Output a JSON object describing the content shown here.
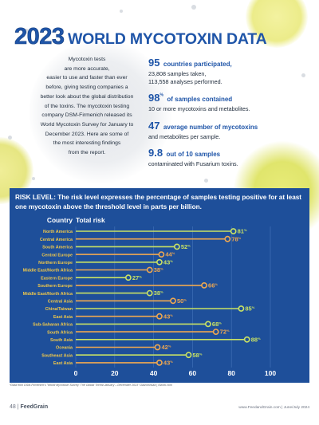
{
  "title": {
    "year": "2023",
    "rest": "WORLD MYCOTOXIN DATA"
  },
  "intro_lines": [
    "Mycotoxin tests",
    "are more accurate,",
    "easier to use and faster than ever",
    "before, giving testing companies a",
    "better look about the global distribution",
    "of the toxins. The mycotoxin testing",
    "company DSM-Firmenich released its",
    "World Mycotoxin Survey for January to",
    "December 2023. Here are some of",
    "the most interesting findings",
    "from the report."
  ],
  "stats": [
    {
      "big": "95",
      "sup": "",
      "lead": "countries participated,",
      "lines": [
        "23,808 samples taken,",
        "113,558 analyses performed."
      ]
    },
    {
      "big": "98",
      "sup": "%",
      "lead": "of samples contained",
      "lines": [
        "10 or more mycotoxins and metabolites."
      ]
    },
    {
      "big": "47",
      "sup": "",
      "lead": "average number of mycotoxins",
      "lines": [
        "and metabolites per sample."
      ]
    },
    {
      "big": "9.8",
      "sup": "",
      "lead": "out of 10 samples",
      "lines": [
        "contaminated with Fusarium toxins."
      ]
    }
  ],
  "risk": {
    "label": "RISK LEVEL:",
    "text": "The risk level expresses the percentage of samples testing positive for at least one mycotoxin above the threshold level in parts per billion."
  },
  "chart_data": {
    "type": "bar",
    "column_headers": [
      "Country",
      "Total risk"
    ],
    "categories": [
      "North America",
      "Central America",
      "South America",
      "Central Europe",
      "Northern Europe",
      "Middle East/North Africa",
      "Eastern Europe",
      "Southern Europe",
      "Middle East/North Africa",
      "Central Asia",
      "China/Taiwan",
      "East Asia",
      "Sub-Saharan Africa",
      "South Africa",
      "South Asia",
      "Oceania",
      "Southeast Asia",
      "East Asia"
    ],
    "values": [
      81,
      78,
      52,
      44,
      43,
      38,
      27,
      66,
      38,
      50,
      85,
      43,
      68,
      72,
      88,
      42,
      58,
      43
    ],
    "value_suffix": "%",
    "xlim": [
      0,
      100
    ],
    "xticks": [
      "0",
      "20",
      "40",
      "60",
      "80",
      "100"
    ],
    "grid": true,
    "colors": {
      "green": "#c9e264",
      "orange": "#f0a850",
      "panel": "#1e4f9a",
      "label": "#f0c84a"
    },
    "bar_colors": [
      "green",
      "orange",
      "green",
      "orange",
      "green",
      "orange",
      "green",
      "orange",
      "green",
      "orange",
      "green",
      "orange",
      "green",
      "orange",
      "green",
      "orange",
      "green",
      "orange"
    ]
  },
  "footnote": "*Data from DSM-Firmenich's \"World Mycotoxin Survey: The Global Threat January – December 2023\"     Gaivoronska | iStock.com",
  "footer": {
    "page": "48",
    "sep": "|",
    "brand": "FeedGrain",
    "site": "www.FeedandGrain.com",
    "issue": "June/July 2024"
  }
}
